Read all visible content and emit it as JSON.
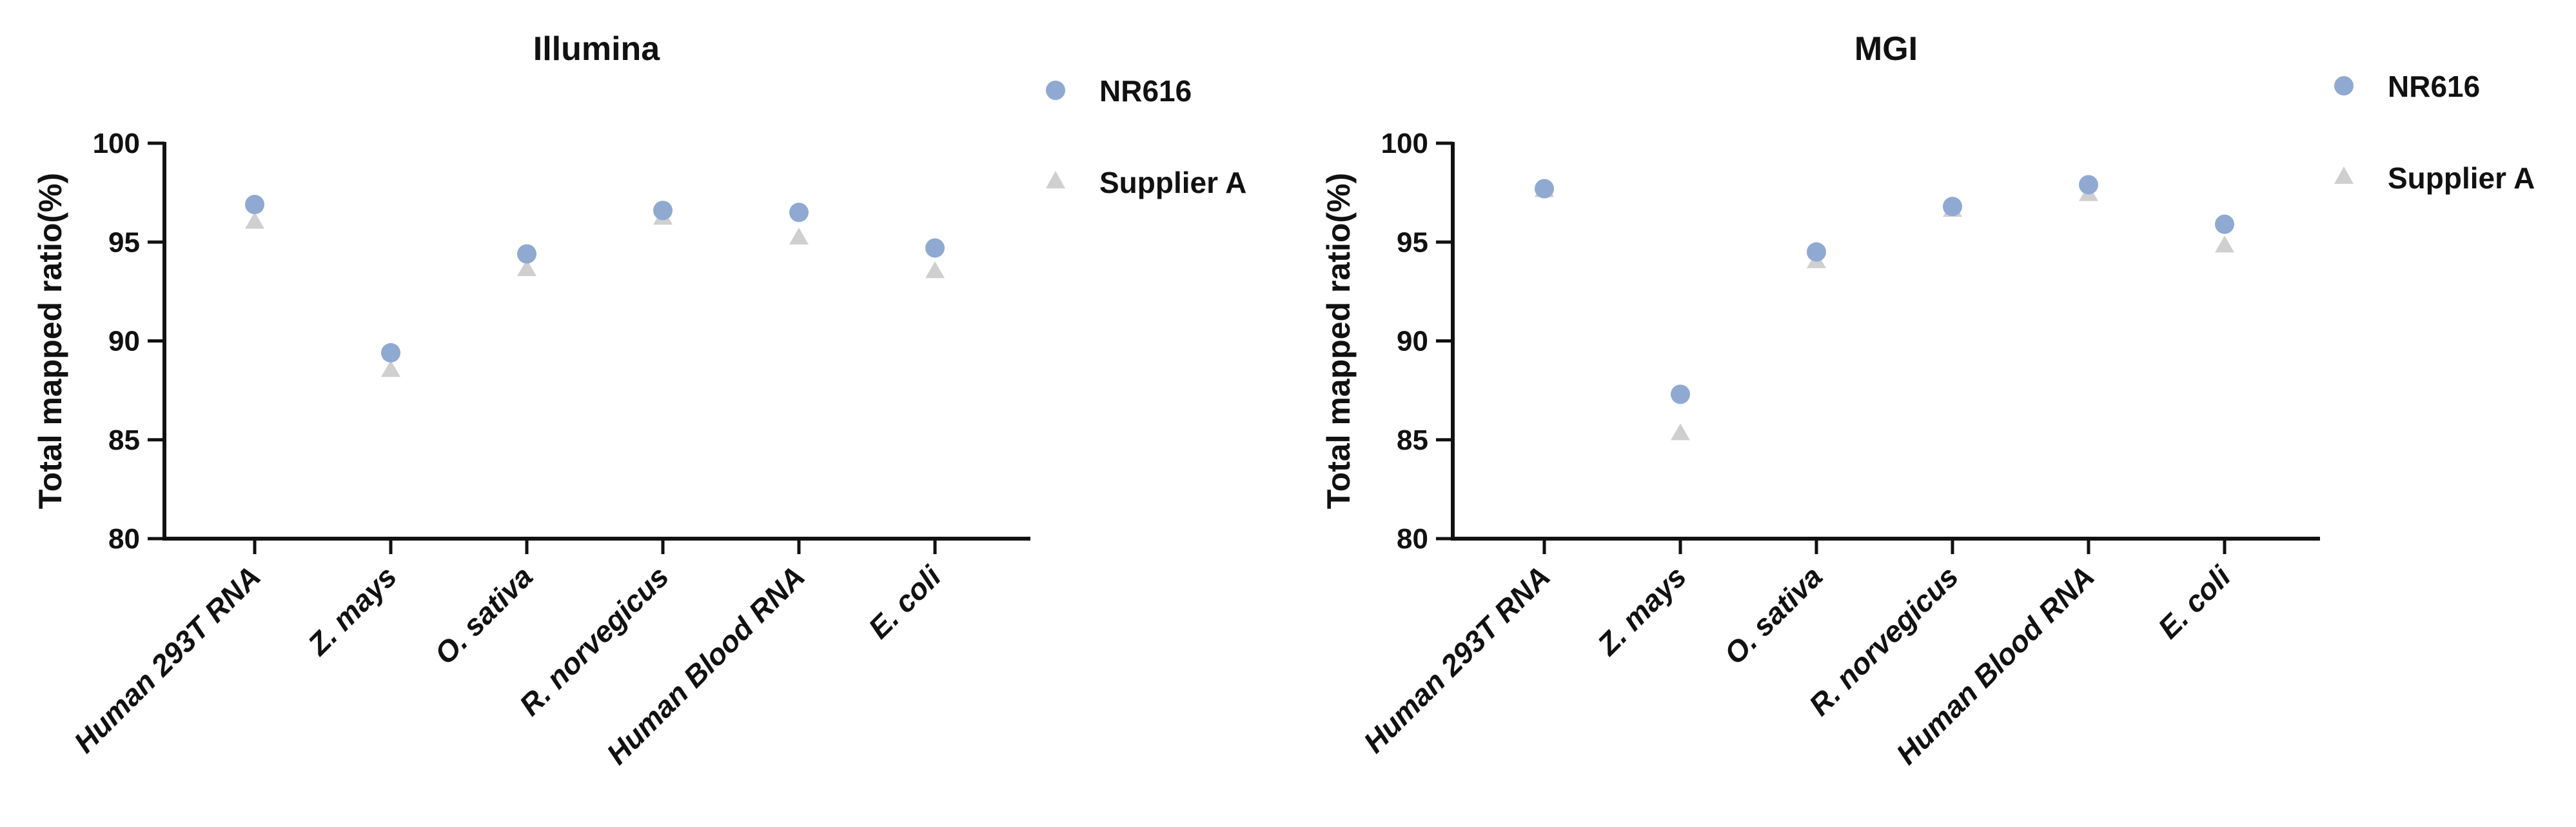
{
  "chart_data": [
    {
      "type": "scatter",
      "title": "Illumina",
      "xlabel": "",
      "ylabel": "Total mapped ratio(%)",
      "ylim": [
        80,
        100
      ],
      "yticks": [
        "80",
        "85",
        "90",
        "95",
        "100"
      ],
      "categories": [
        "Human 293T RNA",
        "Z. mays",
        "O. sativa",
        "R. norvegicus",
        "Human Blood RNA",
        "E. coli"
      ],
      "series": [
        {
          "name": "NR616",
          "marker": "circle",
          "color": "#8fa9d2",
          "values": [
            96.9,
            89.4,
            94.4,
            96.6,
            96.5,
            94.7
          ]
        },
        {
          "name": "Supplier A",
          "marker": "triangle",
          "color": "#cfcfcf",
          "values": [
            96.0,
            88.5,
            93.6,
            96.2,
            95.2,
            93.5
          ]
        }
      ],
      "grid": false,
      "legend_position": "top-right"
    },
    {
      "type": "scatter",
      "title": "MGI",
      "xlabel": "",
      "ylabel": "Total mapped ratio(%)",
      "ylim": [
        80,
        100
      ],
      "yticks": [
        "80",
        "85",
        "90",
        "95",
        "100"
      ],
      "categories": [
        "Human 293T RNA",
        "Z. mays",
        "O. sativa",
        "R. norvegicus",
        "Human Blood RNA",
        "E. coli"
      ],
      "series": [
        {
          "name": "NR616",
          "marker": "circle",
          "color": "#8fa9d2",
          "values": [
            97.7,
            87.3,
            94.5,
            96.8,
            97.9,
            95.9
          ]
        },
        {
          "name": "Supplier A",
          "marker": "triangle",
          "color": "#cfcfcf",
          "values": [
            97.6,
            85.3,
            94.0,
            96.6,
            97.4,
            94.8
          ]
        }
      ],
      "grid": false,
      "legend_position": "top-right"
    }
  ]
}
